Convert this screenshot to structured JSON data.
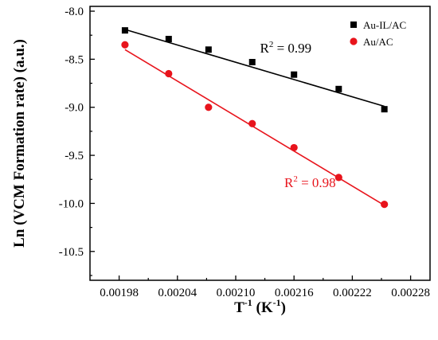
{
  "chart_data": {
    "type": "scatter",
    "x": [
      0.001986,
      0.002031,
      0.002072,
      0.002117,
      0.00216,
      0.002206,
      0.002253
    ],
    "series": [
      {
        "name": "Au-IL/AC",
        "marker": "square",
        "color": "#000000",
        "values": [
          -8.2,
          -8.29,
          -8.4,
          -8.53,
          -8.66,
          -8.81,
          -9.02
        ],
        "fit_line": {
          "x": [
            0.001986,
            0.002253
          ],
          "y": [
            -8.19,
            -8.99
          ]
        }
      },
      {
        "name": "Au/AC",
        "marker": "circle",
        "color": "#e8141c",
        "values": [
          -8.35,
          -8.65,
          -9.0,
          -9.17,
          -9.42,
          -9.73,
          -10.01
        ],
        "fit_line": {
          "x": [
            0.001986,
            0.002253
          ],
          "y": [
            -8.4,
            -10.02
          ]
        }
      }
    ],
    "xlim": [
      0.00195,
      0.0023
    ],
    "ylim": [
      -10.8,
      -7.95
    ],
    "x_ticks": [
      0.00198,
      0.00204,
      0.0021,
      0.00216,
      0.00222,
      0.00228
    ],
    "x_tick_labels": [
      "0.00198",
      "0.00204",
      "0.00210",
      "0.00216",
      "0.00222",
      "0.00228"
    ],
    "y_ticks": [
      -8.0,
      -8.5,
      -9.0,
      -9.5,
      -10.0,
      -10.5
    ],
    "y_tick_labels": [
      "-8.0",
      "-8.5",
      "-9.0",
      "-9.5",
      "-10.0",
      "-10.5"
    ],
    "xlabel": "T",
    "xlabel_sup1": "-1",
    "xlabel_mid": " (K",
    "xlabel_sup2": "-1",
    "xlabel_end": ")",
    "ylabel": "Ln (VCM Formation rate) (a.u.)",
    "annotations": [
      {
        "series": "Au-IL/AC",
        "text_pre": "R",
        "sup": "2",
        "text_post": " = 0.99",
        "color": "#000000",
        "x": 0.002125,
        "y": -8.43
      },
      {
        "series": "Au/AC",
        "text_pre": "R",
        "sup": "2",
        "text_post": " = 0.98",
        "color": "#e8141c",
        "x": 0.00215,
        "y": -9.83
      }
    ],
    "legend_position": "top-right",
    "grid": false
  }
}
